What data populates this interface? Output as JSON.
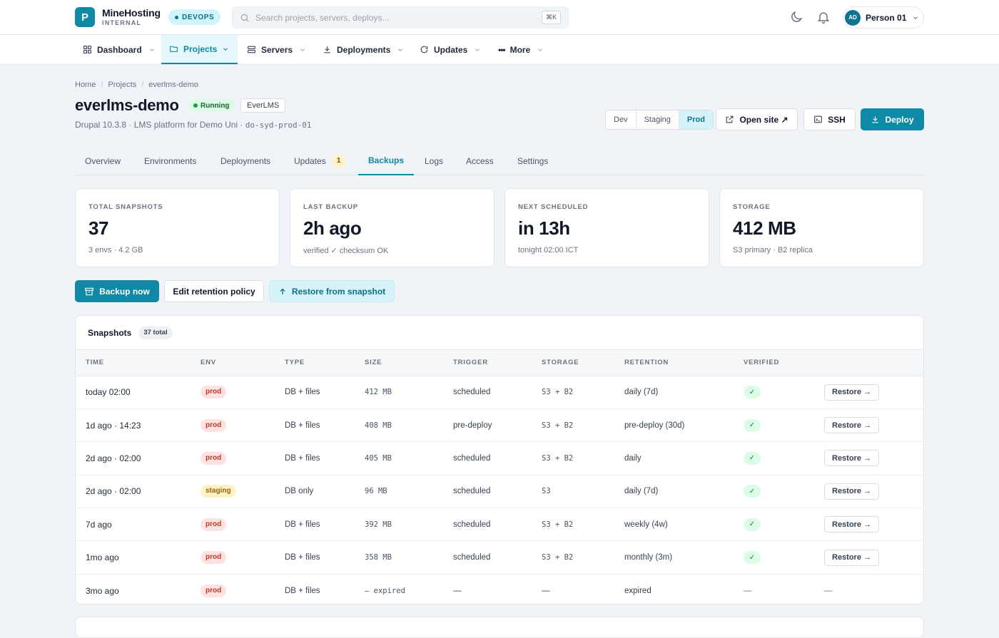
{
  "app": {
    "logo_letter": "P",
    "brand_name": "MineHosting",
    "brand_sub": "INTERNAL",
    "env_pill": "DEVOPS"
  },
  "search": {
    "placeholder": "Search projects, servers, deploys...",
    "shortcut": "⌘K"
  },
  "user": {
    "initials": "AD",
    "name": "Person 01"
  },
  "nav": [
    {
      "label": "Dashboard",
      "icon": "grid-icon"
    },
    {
      "label": "Projects",
      "icon": "folder-icon",
      "active": true
    },
    {
      "label": "Servers",
      "icon": "server-icon"
    },
    {
      "label": "Deployments",
      "icon": "download-icon"
    },
    {
      "label": "Updates",
      "icon": "refresh-icon"
    },
    {
      "label": "More",
      "icon": "dots-icon"
    }
  ],
  "breadcrumb": [
    "Home",
    "Projects",
    "everlms-demo"
  ],
  "project": {
    "title": "everlms-demo",
    "status": "Running",
    "app_tag": "EverLMS",
    "subtitle": "Drupal 10.3.8 · LMS platform for Demo Uni · ",
    "server": "do-syd-prod-01"
  },
  "env_switch": {
    "options": [
      "Dev",
      "Staging",
      "Prod"
    ],
    "selected": "Prod"
  },
  "actions": {
    "open_site": "Open site ↗",
    "ssh": "SSH",
    "deploy": "Deploy"
  },
  "tabs": [
    {
      "label": "Overview"
    },
    {
      "label": "Environments"
    },
    {
      "label": "Deployments"
    },
    {
      "label": "Updates",
      "count": "1"
    },
    {
      "label": "Backups",
      "active": true
    },
    {
      "label": "Logs"
    },
    {
      "label": "Access"
    },
    {
      "label": "Settings"
    }
  ],
  "stats": [
    {
      "label": "TOTAL SNAPSHOTS",
      "value": "37",
      "sub": "3 envs · 4.2 GB"
    },
    {
      "label": "LAST BACKUP",
      "value": "2h ago",
      "sub": "verified ✓ checksum OK"
    },
    {
      "label": "NEXT SCHEDULED",
      "value": "in 13h",
      "sub": "tonight 02:00 ICT"
    },
    {
      "label": "STORAGE",
      "value": "412 MB",
      "sub": "S3 primary · B2 replica"
    }
  ],
  "backup_actions": {
    "backup_now": "Backup now",
    "edit_retention": "Edit retention policy",
    "restore_snapshot": "Restore from snapshot"
  },
  "snapshots": {
    "title": "Snapshots",
    "count_label": "37 total",
    "columns": [
      "TIME",
      "ENV",
      "TYPE",
      "SIZE",
      "TRIGGER",
      "STORAGE",
      "RETENTION",
      "VERIFIED",
      ""
    ],
    "restore_label": "Restore →",
    "rows": [
      {
        "time": "today 02:00",
        "env": "prod",
        "type": "DB + files",
        "size": "412 MB",
        "trigger": "scheduled",
        "storage": "S3 + B2",
        "retention": "daily (7d)",
        "verified": "✓",
        "action": "Restore →"
      },
      {
        "time": "1d ago · 14:23",
        "env": "prod",
        "type": "DB + files",
        "size": "408 MB",
        "trigger": "pre-deploy",
        "storage": "S3 + B2",
        "retention": "pre-deploy (30d)",
        "verified": "✓",
        "action": "Restore →"
      },
      {
        "time": "2d ago · 02:00",
        "env": "prod",
        "type": "DB + files",
        "size": "405 MB",
        "trigger": "scheduled",
        "storage": "S3 + B2",
        "retention": "daily",
        "verified": "✓",
        "action": "Restore →"
      },
      {
        "time": "2d ago · 02:00",
        "env": "staging",
        "type": "DB only",
        "size": "96 MB",
        "trigger": "scheduled",
        "storage": "S3",
        "retention": "daily (7d)",
        "verified": "✓",
        "action": "Restore →"
      },
      {
        "time": "7d ago",
        "env": "prod",
        "type": "DB + files",
        "size": "392 MB",
        "trigger": "scheduled",
        "storage": "S3 + B2",
        "retention": "weekly (4w)",
        "verified": "✓",
        "action": "Restore →"
      },
      {
        "time": "1mo ago",
        "env": "prod",
        "type": "DB + files",
        "size": "358 MB",
        "trigger": "scheduled",
        "storage": "S3 + B2",
        "retention": "monthly (3m)",
        "verified": "✓",
        "action": "Restore →"
      },
      {
        "time": "3mo ago",
        "env": "prod",
        "type": "DB + files",
        "size": "— expired",
        "trigger": "—",
        "storage": "—",
        "retention": "expired",
        "verified": "—",
        "action": "—"
      }
    ]
  },
  "colors": {
    "accent": "#0e8aa6",
    "prod": "#c0392b",
    "staging": "#a16207",
    "success": "#16a34a"
  }
}
